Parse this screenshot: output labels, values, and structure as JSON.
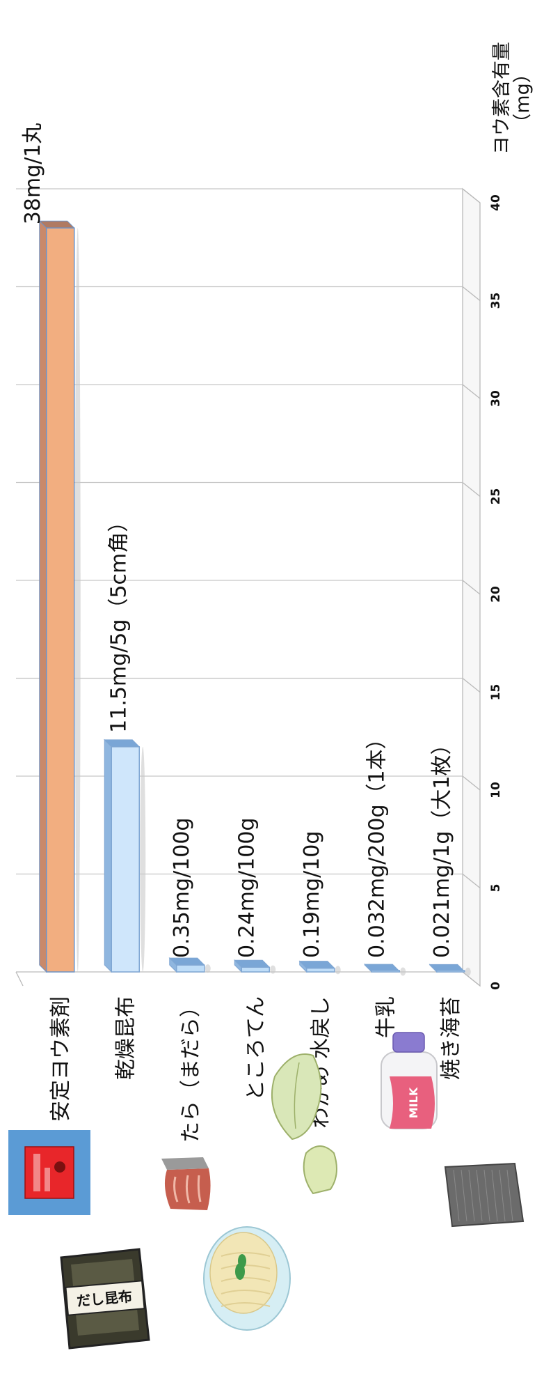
{
  "chart_data": {
    "type": "bar",
    "orientation": "horizontal",
    "ylabel": "ヨウ素含有量\n（mg）",
    "xlim": [
      0,
      40
    ],
    "ticks": [
      0,
      5,
      10,
      15,
      20,
      25,
      30,
      35,
      40
    ],
    "grid": true,
    "categories": [
      "安定ヨウ素剤",
      "乾燥昆布",
      "たら（まだら）",
      "ところてん",
      "わかめ 水戻し",
      "牛乳",
      "焼き海苔"
    ],
    "values": [
      38,
      11.5,
      0.35,
      0.24,
      0.19,
      0.032,
      0.021
    ],
    "data_labels": [
      "38mg/1丸",
      "11.5mg/5g（5cm角）",
      "0.35mg/100g",
      "0.24mg/100g",
      "0.19mg/10g",
      "0.032mg/200g（1本）",
      "0.021mg/1g（大1枚）"
    ],
    "bar_colors": [
      "#F2AE80",
      "#CFE6FB",
      "#BFDDF8",
      "#BFDDF8",
      "#BFDDF8",
      "#BFDDF8",
      "#BFDDF8"
    ]
  },
  "images": [
    {
      "name": "iodine-tablet-package-icon",
      "color": "#5B9BD5"
    },
    {
      "name": "dried-kombu-package-icon",
      "text": "だし昆布"
    },
    {
      "name": "cod-fillet-icon"
    },
    {
      "name": "tokoroten-bowl-icon"
    },
    {
      "name": "wakame-icon"
    },
    {
      "name": "milk-bottle-icon",
      "text": "MILK"
    },
    {
      "name": "nori-sheet-icon"
    }
  ]
}
